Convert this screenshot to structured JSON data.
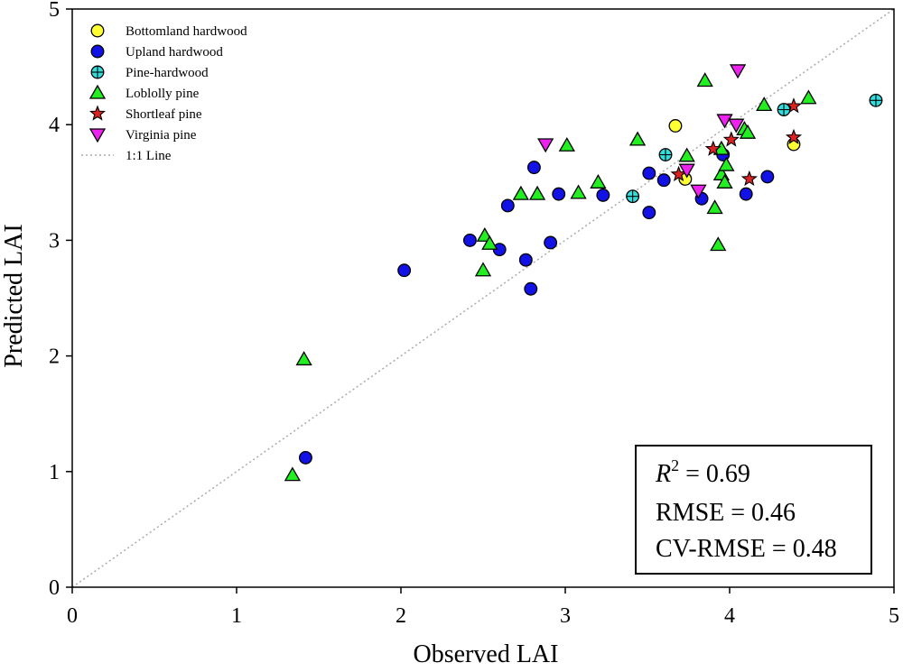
{
  "chart_data": {
    "type": "scatter",
    "xlabel": "Observed LAI",
    "ylabel": "Predicted LAI",
    "xlim": [
      0,
      5
    ],
    "ylim": [
      0,
      5
    ],
    "xticks": [
      "0",
      "1",
      "2",
      "3",
      "4",
      "5"
    ],
    "yticks": [
      "0",
      "1",
      "2",
      "3",
      "4",
      "5"
    ],
    "grid": false,
    "legend_position": "top-left",
    "reference_line": {
      "name": "1:1 Line",
      "from": [
        0,
        0
      ],
      "to": [
        5,
        5
      ],
      "style": "dotted",
      "color": "#aaaaaa"
    },
    "stats": {
      "r2_label": "R",
      "r2_sup": "2",
      "r2_value": " = 0.69",
      "rmse": "RMSE = 0.46",
      "cv_rmse": "CV-RMSE = 0.48"
    },
    "series": [
      {
        "name": "Bottomland hardwood",
        "marker": "circle",
        "color": "#ffff33",
        "points": [
          [
            3.67,
            3.99
          ],
          [
            3.73,
            3.53
          ],
          [
            4.39,
            3.83
          ]
        ]
      },
      {
        "name": "Upland hardwood",
        "marker": "circle",
        "color": "#1212e6",
        "points": [
          [
            1.42,
            1.12
          ],
          [
            2.02,
            2.74
          ],
          [
            2.42,
            3.0
          ],
          [
            2.6,
            2.92
          ],
          [
            2.65,
            3.3
          ],
          [
            2.76,
            2.83
          ],
          [
            2.79,
            2.58
          ],
          [
            2.81,
            3.63
          ],
          [
            2.91,
            2.98
          ],
          [
            2.96,
            3.4
          ],
          [
            3.23,
            3.39
          ],
          [
            3.51,
            3.24
          ],
          [
            3.51,
            3.58
          ],
          [
            3.6,
            3.52
          ],
          [
            3.83,
            3.36
          ],
          [
            3.96,
            3.74
          ],
          [
            4.1,
            3.4
          ],
          [
            4.23,
            3.55
          ]
        ]
      },
      {
        "name": "Pine-hardwood",
        "marker": "circle-cross",
        "color": "#33dddd",
        "points": [
          [
            3.41,
            3.38
          ],
          [
            3.61,
            3.74
          ],
          [
            4.33,
            4.13
          ],
          [
            4.89,
            4.21
          ]
        ]
      },
      {
        "name": "Loblolly pine",
        "marker": "triangle-up",
        "color": "#22ee22",
        "points": [
          [
            1.34,
            0.97
          ],
          [
            1.41,
            1.97
          ],
          [
            2.5,
            2.74
          ],
          [
            2.51,
            3.04
          ],
          [
            2.54,
            2.97
          ],
          [
            2.73,
            3.4
          ],
          [
            2.83,
            3.4
          ],
          [
            3.01,
            3.82
          ],
          [
            3.08,
            3.41
          ],
          [
            3.2,
            3.5
          ],
          [
            3.44,
            3.87
          ],
          [
            3.74,
            3.73
          ],
          [
            3.85,
            4.38
          ],
          [
            3.91,
            3.28
          ],
          [
            3.93,
            2.96
          ],
          [
            3.95,
            3.57
          ],
          [
            3.95,
            3.79
          ],
          [
            3.97,
            3.5
          ],
          [
            3.98,
            3.65
          ],
          [
            4.09,
            3.96
          ],
          [
            4.11,
            3.93
          ],
          [
            4.21,
            4.17
          ],
          [
            4.48,
            4.23
          ]
        ]
      },
      {
        "name": "Shortleaf pine",
        "marker": "star",
        "color": "#dd2222",
        "points": [
          [
            3.69,
            3.57
          ],
          [
            3.9,
            3.79
          ],
          [
            4.01,
            3.87
          ],
          [
            4.12,
            3.53
          ],
          [
            4.39,
            3.89
          ],
          [
            4.39,
            4.16
          ]
        ]
      },
      {
        "name": "Virginia pine",
        "marker": "triangle-down",
        "color": "#ee22ee",
        "points": [
          [
            2.88,
            3.83
          ],
          [
            3.74,
            3.61
          ],
          [
            3.81,
            3.43
          ],
          [
            3.97,
            4.04
          ],
          [
            4.04,
            4.0
          ],
          [
            4.05,
            4.47
          ]
        ]
      }
    ]
  }
}
